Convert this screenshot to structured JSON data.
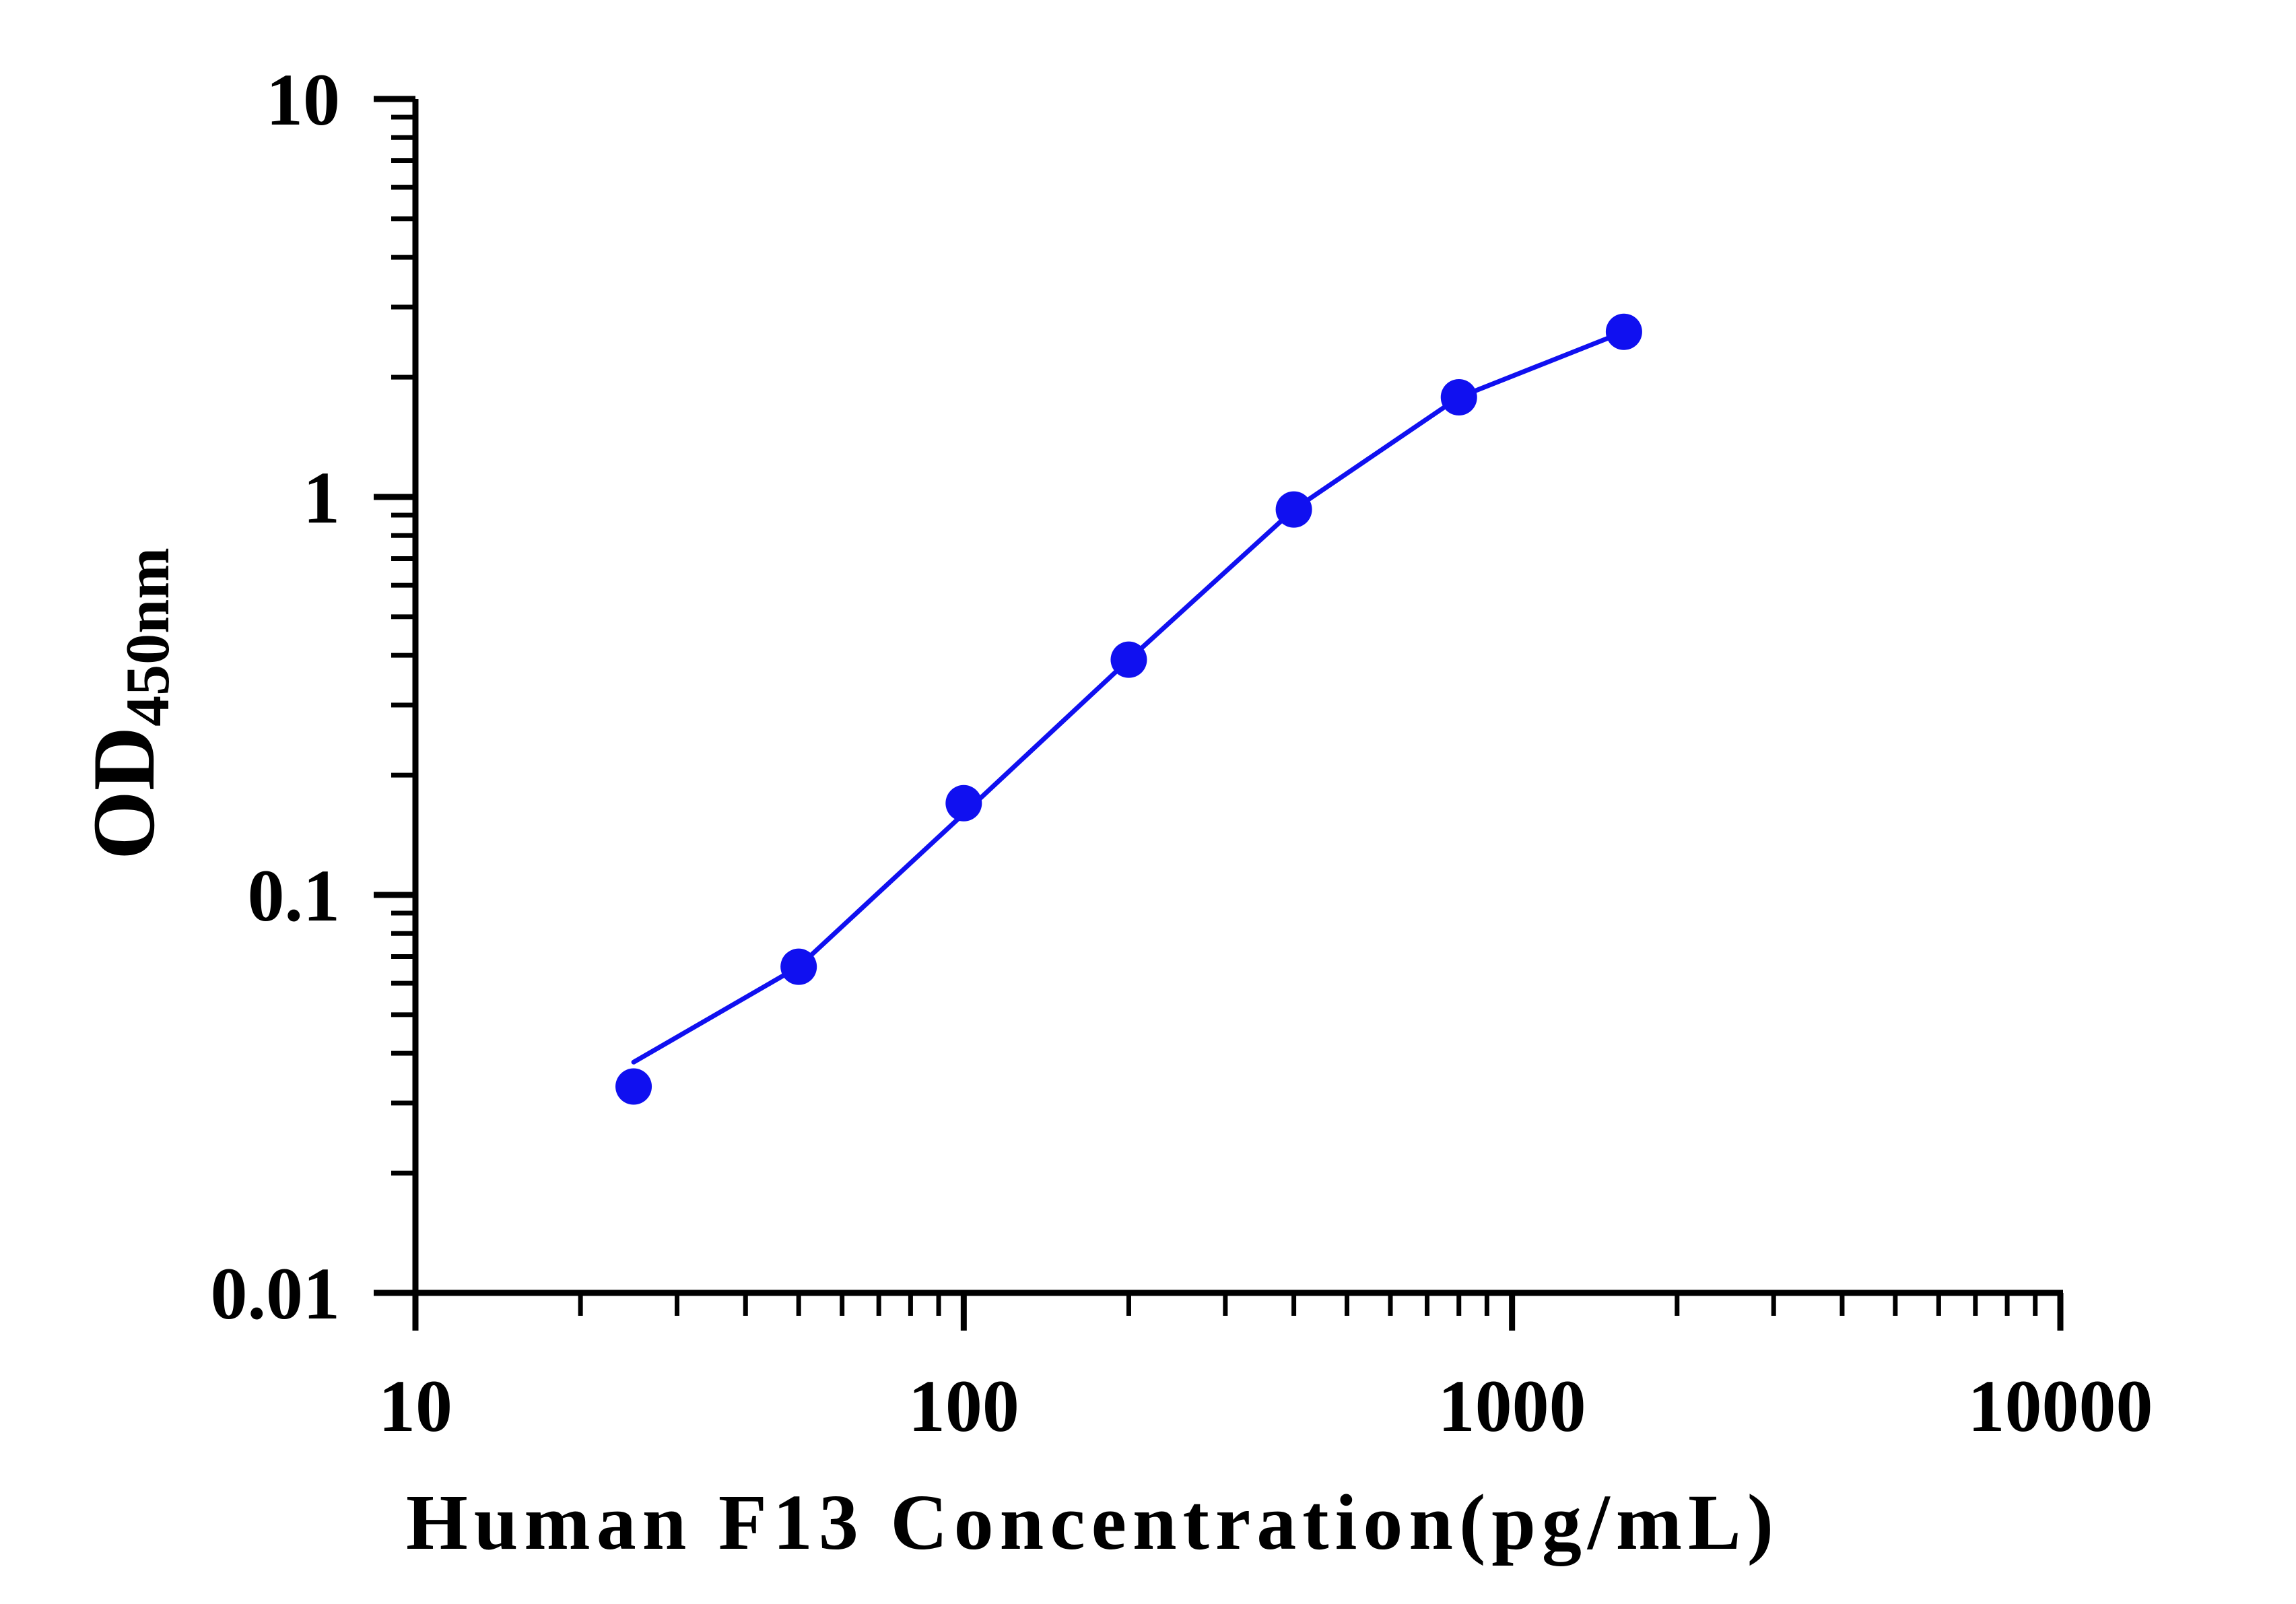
{
  "chart_data": {
    "type": "line",
    "title": "",
    "xlabel": "Human F13 Concentration(pg/mL)",
    "ylabel": {
      "main": "OD",
      "subscript": "450nm"
    },
    "xscale": "log",
    "yscale": "log",
    "xlim": [
      10,
      10000
    ],
    "ylim": [
      0.01,
      10
    ],
    "xticks": [
      "10",
      "100",
      "1000",
      "10000"
    ],
    "yticks": [
      "0.01",
      "0.1",
      "1",
      "10"
    ],
    "grid": false,
    "legend": "none",
    "colors": {
      "series": "#1010f0",
      "axis": "#000000"
    },
    "series": [
      {
        "x": [
          25,
          50,
          100,
          200,
          400,
          800,
          1600
        ],
        "y": [
          0.033,
          0.066,
          0.17,
          0.39,
          0.93,
          1.78,
          2.6
        ]
      }
    ],
    "fit_curve": {
      "x": [
        25,
        50,
        100,
        200,
        400,
        800,
        1600
      ],
      "y": [
        0.038,
        0.066,
        0.16,
        0.39,
        0.93,
        1.78,
        2.6
      ]
    }
  }
}
